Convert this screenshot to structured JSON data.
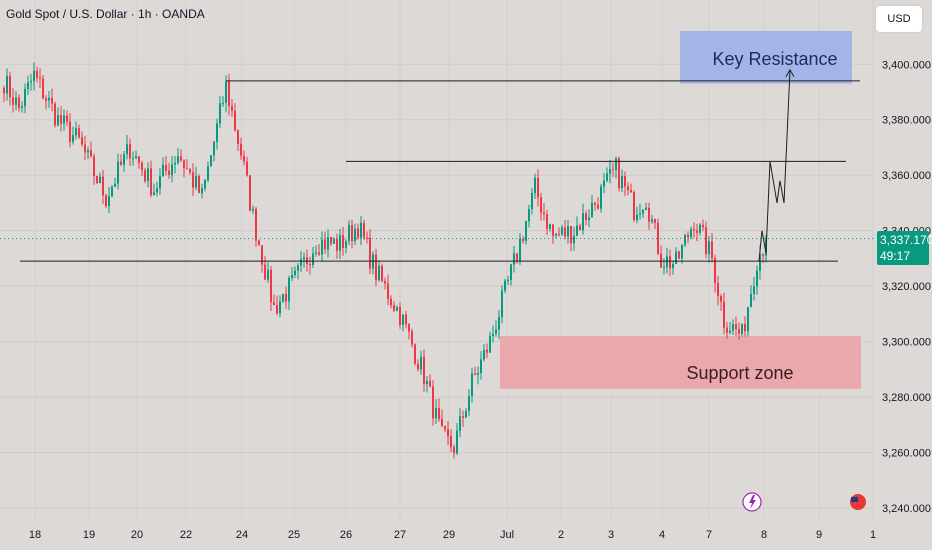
{
  "header": {
    "title": "Gold Spot / U.S. Dollar · 1h · OANDA"
  },
  "currency": "USD",
  "last_price": {
    "price": "3,337.170",
    "countdown": "49:17"
  },
  "chart_data": {
    "type": "candlestick",
    "ylim": [
      3240,
      3410
    ],
    "y_ticks": [
      3240,
      3260,
      3280,
      3300,
      3320,
      3340,
      3360,
      3380,
      3400
    ],
    "y_tick_labels": [
      "3,240.000",
      "3,260.000",
      "3,280.000",
      "3,300.000",
      "3,320.000",
      "3,340.000",
      "3,360.000",
      "3,380.000",
      "3,400.000"
    ],
    "x_labels": [
      "18",
      "19",
      "20",
      "22",
      "24",
      "25",
      "26",
      "27",
      "29",
      "Jul",
      "2",
      "3",
      "4",
      "7",
      "8",
      "9",
      "1"
    ],
    "last_price_value": 3337.17,
    "colors": {
      "up": "#089981",
      "down": "#f23645",
      "background": "#dcd9d7",
      "resistance_zone": "#a3b4e6",
      "support_zone": "#eaa8ac",
      "line": "#1f1f1f"
    },
    "anchors": [
      {
        "i": 0,
        "p": 3394
      },
      {
        "i": 5,
        "p": 3384
      },
      {
        "i": 10,
        "p": 3396
      },
      {
        "i": 18,
        "p": 3380
      },
      {
        "i": 25,
        "p": 3372
      },
      {
        "i": 34,
        "p": 3352
      },
      {
        "i": 42,
        "p": 3370
      },
      {
        "i": 50,
        "p": 3355
      },
      {
        "i": 58,
        "p": 3368
      },
      {
        "i": 66,
        "p": 3352
      },
      {
        "i": 74,
        "p": 3392
      },
      {
        "i": 79,
        "p": 3368
      },
      {
        "i": 83,
        "p": 3345
      },
      {
        "i": 90,
        "p": 3312
      },
      {
        "i": 97,
        "p": 3322
      },
      {
        "i": 104,
        "p": 3336
      },
      {
        "i": 112,
        "p": 3335
      },
      {
        "i": 118,
        "p": 3342
      },
      {
        "i": 124,
        "p": 3325
      },
      {
        "i": 132,
        "p": 3310
      },
      {
        "i": 140,
        "p": 3288
      },
      {
        "i": 146,
        "p": 3265
      },
      {
        "i": 150,
        "p": 3262
      },
      {
        "i": 156,
        "p": 3285
      },
      {
        "i": 162,
        "p": 3300
      },
      {
        "i": 170,
        "p": 3328
      },
      {
        "i": 177,
        "p": 3355
      },
      {
        "i": 183,
        "p": 3338
      },
      {
        "i": 190,
        "p": 3340
      },
      {
        "i": 197,
        "p": 3350
      },
      {
        "i": 204,
        "p": 3362
      },
      {
        "i": 210,
        "p": 3348
      },
      {
        "i": 214,
        "p": 3352
      },
      {
        "i": 219,
        "p": 3330
      },
      {
        "i": 224,
        "p": 3328
      },
      {
        "i": 230,
        "p": 3344
      },
      {
        "i": 236,
        "p": 3330
      },
      {
        "i": 240,
        "p": 3308
      },
      {
        "i": 246,
        "p": 3302
      },
      {
        "i": 251,
        "p": 3330
      },
      {
        "i": 254,
        "p": 3337
      }
    ],
    "annotations": {
      "resistance_label": "Key Resistance",
      "support_label": "Support zone",
      "resistance_zone": [
        3393,
        3412
      ],
      "support_zone": [
        3283,
        3302
      ],
      "horizontal_lines": [
        {
          "from_candle": 74,
          "to_candle": 350,
          "price": 3394
        },
        {
          "from_candle": 114,
          "to_candle": 334,
          "price": 3365
        },
        {
          "from_candle": 2,
          "to_candle": 326,
          "price": 3329
        }
      ],
      "projection_path": [
        {
          "i": 254,
          "p": 3329
        },
        {
          "i": 255,
          "p": 3340
        },
        {
          "i": 258,
          "p": 3332
        },
        {
          "i": 260,
          "p": 3365
        },
        {
          "i": 263,
          "p": 3350
        },
        {
          "i": 266,
          "p": 3358
        },
        {
          "i": 268,
          "p": 3350
        },
        {
          "i": 272,
          "p": 3398
        }
      ]
    }
  }
}
